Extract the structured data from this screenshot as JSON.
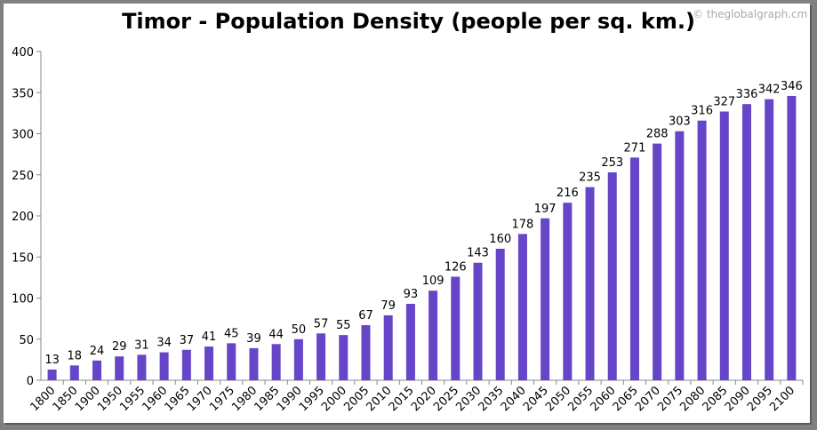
{
  "watermark": "© theglobalgraph.cm",
  "chart_data": {
    "type": "bar",
    "title": "Timor - Population Density (people per sq. km.)",
    "xlabel": "",
    "ylabel": "",
    "ylim": [
      0,
      400
    ],
    "yticks": [
      0,
      50,
      100,
      150,
      200,
      250,
      300,
      350,
      400
    ],
    "grid": false,
    "bar_color": "#6645C8",
    "categories": [
      "1800",
      "1850",
      "1900",
      "1950",
      "1955",
      "1960",
      "1965",
      "1970",
      "1975",
      "1980",
      "1985",
      "1990",
      "1995",
      "2000",
      "2005",
      "2010",
      "2015",
      "2020",
      "2025",
      "2030",
      "2035",
      "2040",
      "2045",
      "2050",
      "2055",
      "2060",
      "2065",
      "2070",
      "2075",
      "2080",
      "2085",
      "2090",
      "2095",
      "2100"
    ],
    "values": [
      13,
      18,
      24,
      29,
      31,
      34,
      37,
      41,
      45,
      39,
      44,
      50,
      57,
      55,
      67,
      79,
      93,
      109,
      126,
      143,
      160,
      178,
      197,
      216,
      235,
      253,
      271,
      288,
      303,
      316,
      327,
      336,
      342,
      346
    ]
  }
}
